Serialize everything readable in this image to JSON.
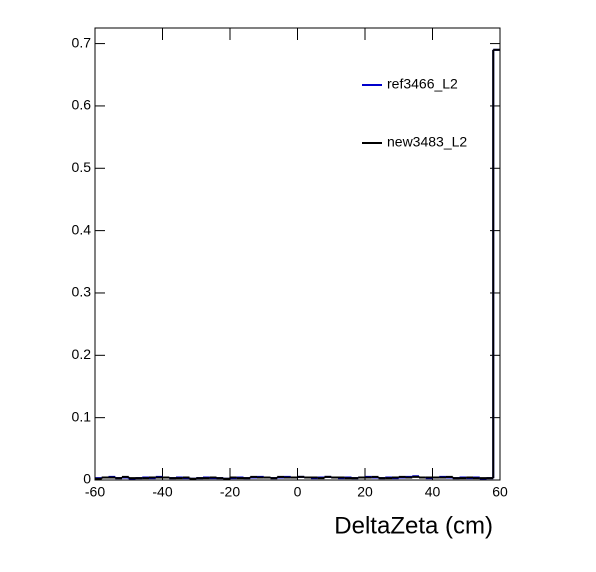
{
  "chart_data": {
    "type": "histogram",
    "x_label": "DeltaZeta (cm)",
    "bins": [
      -60,
      -58,
      -56,
      -54,
      -52,
      -50,
      -48,
      -46,
      -44,
      -42,
      -40,
      -38,
      -36,
      -34,
      -32,
      -30,
      -28,
      -26,
      -24,
      -22,
      -20,
      -18,
      -16,
      -14,
      -12,
      -10,
      -8,
      -6,
      -4,
      -2,
      0,
      2,
      4,
      6,
      8,
      10,
      12,
      14,
      16,
      18,
      20,
      22,
      24,
      26,
      28,
      30,
      32,
      34,
      36,
      38,
      40,
      42,
      44,
      46,
      48,
      50,
      52,
      54,
      56,
      58,
      60
    ],
    "series": [
      {
        "name": "ref3466_L2",
        "color": "#0000cc",
        "values": [
          0.003,
          0.004,
          0.005,
          0.003,
          0.004,
          0.002,
          0.003,
          0.004,
          0.003,
          0.005,
          0.004,
          0.003,
          0.004,
          0.003,
          0.002,
          0.003,
          0.004,
          0.003,
          0.003,
          0.002,
          0.003,
          0.004,
          0.003,
          0.004,
          0.005,
          0.004,
          0.003,
          0.004,
          0.005,
          0.004,
          0.005,
          0.004,
          0.003,
          0.004,
          0.005,
          0.004,
          0.003,
          0.004,
          0.003,
          0.004,
          0.005,
          0.004,
          0.003,
          0.004,
          0.003,
          0.004,
          0.005,
          0.006,
          0.004,
          0.003,
          0.004,
          0.005,
          0.004,
          0.003,
          0.004,
          0.003,
          0.004,
          0.002,
          0.003,
          0.69
        ]
      },
      {
        "name": "new3483_L2",
        "color": "#000000",
        "values": [
          0.002,
          0.004,
          0.004,
          0.003,
          0.005,
          0.003,
          0.003,
          0.003,
          0.004,
          0.004,
          0.004,
          0.003,
          0.003,
          0.004,
          0.002,
          0.003,
          0.003,
          0.004,
          0.003,
          0.002,
          0.004,
          0.003,
          0.003,
          0.005,
          0.004,
          0.004,
          0.003,
          0.005,
          0.004,
          0.004,
          0.005,
          0.004,
          0.004,
          0.003,
          0.005,
          0.004,
          0.004,
          0.003,
          0.003,
          0.004,
          0.004,
          0.005,
          0.003,
          0.003,
          0.004,
          0.005,
          0.004,
          0.005,
          0.004,
          0.004,
          0.004,
          0.004,
          0.005,
          0.003,
          0.003,
          0.004,
          0.003,
          0.003,
          0.003,
          0.69
        ]
      }
    ],
    "xlim": [
      -60,
      60
    ],
    "ylim": [
      0,
      0.725
    ],
    "xticks": [
      -60,
      -40,
      -20,
      0,
      20,
      40,
      60
    ],
    "yticks": [
      0,
      0.1,
      0.2,
      0.3,
      0.4,
      0.5,
      0.6,
      0.7
    ],
    "legend": "top-right"
  }
}
